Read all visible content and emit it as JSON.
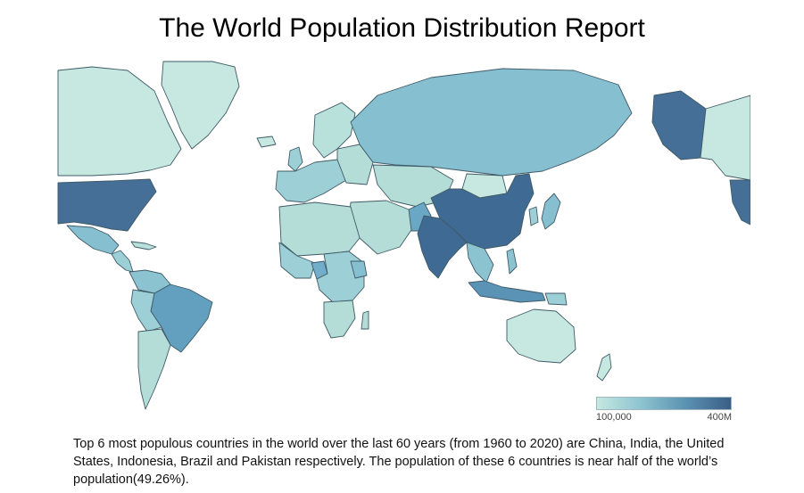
{
  "report": {
    "title": "The World Population Distribution Report",
    "caption": "Top 6 most populous countries in the world over the last 60 years (from 1960 to 2020) are China, India, the United States, Indonesia, Brazil and Pakistan respectively. The population of  these 6 countries is near half of the world’s population(49.26%)."
  },
  "legend": {
    "min_label": "100,000",
    "max_label": "400M",
    "colors": [
      "#c6e8e1",
      "#8cc3d0",
      "#5a91b1",
      "#3b5e86"
    ]
  },
  "map": {
    "type": "choropleth",
    "countries": [
      {
        "name": "china",
        "color": "#3f6a93"
      },
      {
        "name": "india",
        "color": "#3f6a93"
      },
      {
        "name": "united-states",
        "color": "#466f98"
      },
      {
        "name": "indonesia",
        "color": "#5b93b6"
      },
      {
        "name": "brazil",
        "color": "#63a0c0"
      },
      {
        "name": "pakistan",
        "color": "#6aa7c4"
      },
      {
        "name": "nigeria",
        "color": "#72aec9"
      },
      {
        "name": "russia",
        "color": "#86bfd0"
      },
      {
        "name": "mexico",
        "color": "#86bfd0"
      },
      {
        "name": "japan",
        "color": "#86bfd0"
      },
      {
        "name": "canada",
        "color": "#c6e8e1"
      },
      {
        "name": "australia",
        "color": "#c6e8e1"
      },
      {
        "name": "greenland",
        "color": "#c6e8e1"
      }
    ]
  }
}
